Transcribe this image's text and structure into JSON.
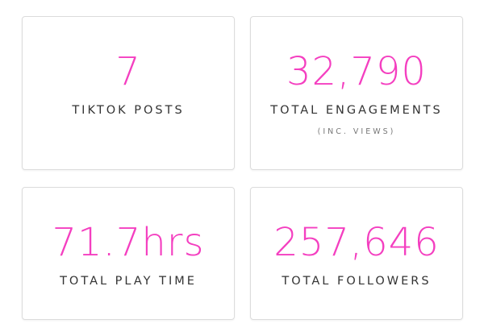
{
  "cards": [
    {
      "value": "7",
      "label": "TIKTOK POSTS"
    },
    {
      "value": "32,790",
      "label": "TOTAL ENGAGEMENTS",
      "note": "(INC. VIEWS)"
    },
    {
      "value": "71.7hrs",
      "label": "TOTAL PLAY TIME"
    },
    {
      "value": "257,646",
      "label": "TOTAL FOLLOWERS"
    }
  ]
}
